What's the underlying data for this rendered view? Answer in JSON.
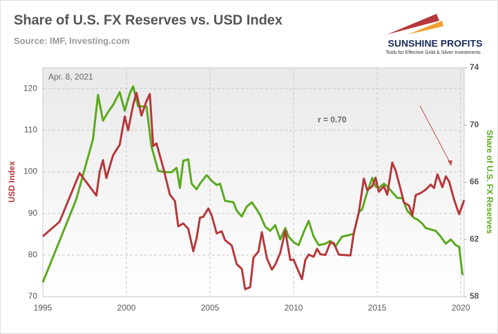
{
  "chart_data": {
    "type": "line",
    "title": "Share of U.S. FX Reserves vs. USD Index",
    "subtitle": "Source: IMF, Investing.com",
    "logo_name": "SUNSHINE PROFITS",
    "logo_tagline": "Tools for Effective Gold & Silver Investments",
    "date_note": "Apr. 8, 2021",
    "correlation_note": "r = 0.70",
    "ylabel": "USD Index",
    "y2label": "Share of U.S.  FX Reserves",
    "xlim": [
      1995,
      2020.2
    ],
    "xticks": [
      1995,
      2000,
      2005,
      2010,
      2015,
      2020
    ],
    "ylim": [
      70,
      125
    ],
    "yticks": [
      70,
      80,
      90,
      100,
      110,
      120
    ],
    "y2lim": [
      58,
      74
    ],
    "y2ticks": [
      58,
      62,
      66,
      70,
      74
    ],
    "grid": true,
    "series": [
      {
        "color": "#b5383a",
        "axis": "y",
        "x": [
          1995,
          1996,
          1997.2,
          1998.2,
          1998.4,
          1998.6,
          1998.8,
          1999.2,
          1999.6,
          1999.9,
          2000.1,
          2000.4,
          2000.6,
          2000.9,
          2001.2,
          2001.4,
          2001.6,
          2001.8,
          2002.2,
          2002.6,
          2002.9,
          2003.1,
          2003.4,
          2003.7,
          2004,
          2004.2,
          2004.4,
          2004.6,
          2004.9,
          2005.1,
          2005.4,
          2005.7,
          2005.9,
          2006.3,
          2006.6,
          2006.9,
          2007.1,
          2007.4,
          2007.6,
          2007.9,
          2008.1,
          2008.4,
          2008.7,
          2008.9,
          2009.2,
          2009.5,
          2009.8,
          2010,
          2010.3,
          2010.5,
          2010.7,
          2010.9,
          2011.2,
          2011.4,
          2011.6,
          2011.9,
          2012.2,
          2012.4,
          2012.7,
          2013,
          2013.4,
          2013.6,
          2013.9,
          2014.2,
          2014.4,
          2014.7,
          2014.9,
          2015.1,
          2015.4,
          2015.6,
          2015.9,
          2016.1,
          2016.4,
          2016.6,
          2016.9,
          2017.1,
          2017.3,
          2017.6,
          2017.9,
          2018.2,
          2018.4,
          2018.6,
          2018.9,
          2019.1,
          2019.3,
          2019.6,
          2019.9,
          2020.2
        ],
        "values": [
          84.5,
          88,
          99.7,
          94.3,
          100,
          102.8,
          98.5,
          104,
          106.5,
          113.3,
          110,
          116,
          119,
          113.5,
          117,
          118.7,
          106.2,
          106.8,
          101,
          94.5,
          93,
          86.9,
          87.6,
          86.3,
          80.9,
          84.1,
          89,
          89.2,
          91.2,
          89.5,
          85.2,
          85.7,
          83.6,
          82.3,
          77.8,
          76.7,
          71.8,
          72.3,
          79.4,
          80.9,
          85.5,
          79.2,
          76.5,
          77.7,
          80.5,
          85.8,
          78.8,
          78.9,
          76,
          74.2,
          78.8,
          80.1,
          79.6,
          81.5,
          80.2,
          80,
          83,
          82.9,
          80.1,
          80,
          79.9,
          85.3,
          90.2,
          98.4,
          95.6,
          96.5,
          98.6,
          95.2,
          96.5,
          94.5,
          102.2,
          100.3,
          95.8,
          92.6,
          91.9,
          89.5,
          94.4,
          94.9,
          95.7,
          96.9,
          96.1,
          99.4,
          96.3,
          98.9,
          97.7,
          93.3,
          89.8,
          93.2
        ]
      },
      {
        "color": "#5aa91e",
        "axis": "y2",
        "x": [
          1995,
          1997,
          1998,
          1998.3,
          1998.6,
          1998.9,
          1999.2,
          1999.6,
          1999.9,
          2000.2,
          2000.4,
          2000.7,
          2001,
          2001.2,
          2001.5,
          2001.9,
          2002.3,
          2002.7,
          2003,
          2003.2,
          2003.4,
          2003.7,
          2003.9,
          2004.2,
          2004.4,
          2004.8,
          2005.1,
          2005.4,
          2005.6,
          2005.9,
          2006.4,
          2006.6,
          2006.9,
          2007.2,
          2007.5,
          2007.9,
          2008,
          2008.3,
          2008.6,
          2008.9,
          2009.2,
          2009.5,
          2009.7,
          2010,
          2010.3,
          2010.6,
          2010.9,
          2011.2,
          2011.5,
          2011.9,
          2012.2,
          2012.5,
          2012.9,
          2013.3,
          2013.6,
          2013.9,
          2014.1,
          2014.4,
          2014.7,
          2014.9,
          2015.1,
          2015.4,
          2015.6,
          2015.9,
          2016.2,
          2016.5,
          2016.8,
          2017.2,
          2017.4,
          2017.7,
          2017.9,
          2018.2,
          2018.5,
          2018.8,
          2019.1,
          2019.4,
          2019.7,
          2019.9,
          2020.1
        ],
        "values": [
          59,
          64.8,
          69,
          72.1,
          70.3,
          70.9,
          71.4,
          72.3,
          71,
          72.2,
          72.7,
          71.3,
          71.3,
          71.3,
          68.5,
          66.8,
          66.7,
          66.7,
          67,
          65.6,
          67.5,
          67.6,
          65.9,
          65.5,
          65.9,
          66.5,
          66.1,
          65.8,
          65.9,
          64.7,
          64.6,
          64,
          63.6,
          64.3,
          64.6,
          63.9,
          63.7,
          62.9,
          62.6,
          63,
          62,
          62.8,
          62.2,
          61.8,
          61.6,
          62.5,
          63.3,
          62.2,
          61.6,
          61.7,
          61.9,
          61.5,
          62.2,
          62.3,
          62.4,
          63.9,
          64.1,
          65.3,
          66.3,
          65.7,
          65.6,
          65.9,
          65.7,
          65.3,
          64.9,
          64.9,
          64,
          63.5,
          63.4,
          63.1,
          62.8,
          62.7,
          62.6,
          62.2,
          61.7,
          62,
          61.6,
          61.5,
          59.5
        ]
      }
    ]
  }
}
